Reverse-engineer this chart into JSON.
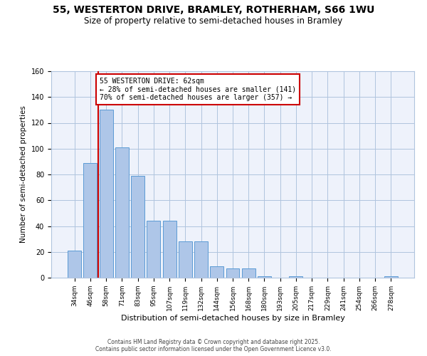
{
  "title_line1": "55, WESTERTON DRIVE, BRAMLEY, ROTHERHAM, S66 1WU",
  "title_line2": "Size of property relative to semi-detached houses in Bramley",
  "xlabel": "Distribution of semi-detached houses by size in Bramley",
  "ylabel": "Number of semi-detached properties",
  "categories": [
    "34sqm",
    "46sqm",
    "58sqm",
    "71sqm",
    "83sqm",
    "95sqm",
    "107sqm",
    "119sqm",
    "132sqm",
    "144sqm",
    "156sqm",
    "168sqm",
    "180sqm",
    "193sqm",
    "205sqm",
    "217sqm",
    "229sqm",
    "241sqm",
    "254sqm",
    "266sqm",
    "278sqm"
  ],
  "values": [
    21,
    89,
    130,
    101,
    79,
    44,
    44,
    28,
    28,
    9,
    7,
    7,
    1,
    0,
    1,
    0,
    0,
    0,
    0,
    0,
    1
  ],
  "bar_color": "#aec6e8",
  "bar_edge_color": "#5b9bd5",
  "vline_color": "#cc0000",
  "annotation_title": "55 WESTERTON DRIVE: 62sqm",
  "annotation_line2": "← 28% of semi-detached houses are smaller (141)",
  "annotation_line3": "70% of semi-detached houses are larger (357) →",
  "annotation_box_color": "#cc0000",
  "ylim": [
    0,
    160
  ],
  "yticks": [
    0,
    20,
    40,
    60,
    80,
    100,
    120,
    140,
    160
  ],
  "grid_color": "#b0c4de",
  "background_color": "#eef2fb",
  "footer_line1": "Contains HM Land Registry data © Crown copyright and database right 2025.",
  "footer_line2": "Contains public sector information licensed under the Open Government Licence v3.0."
}
